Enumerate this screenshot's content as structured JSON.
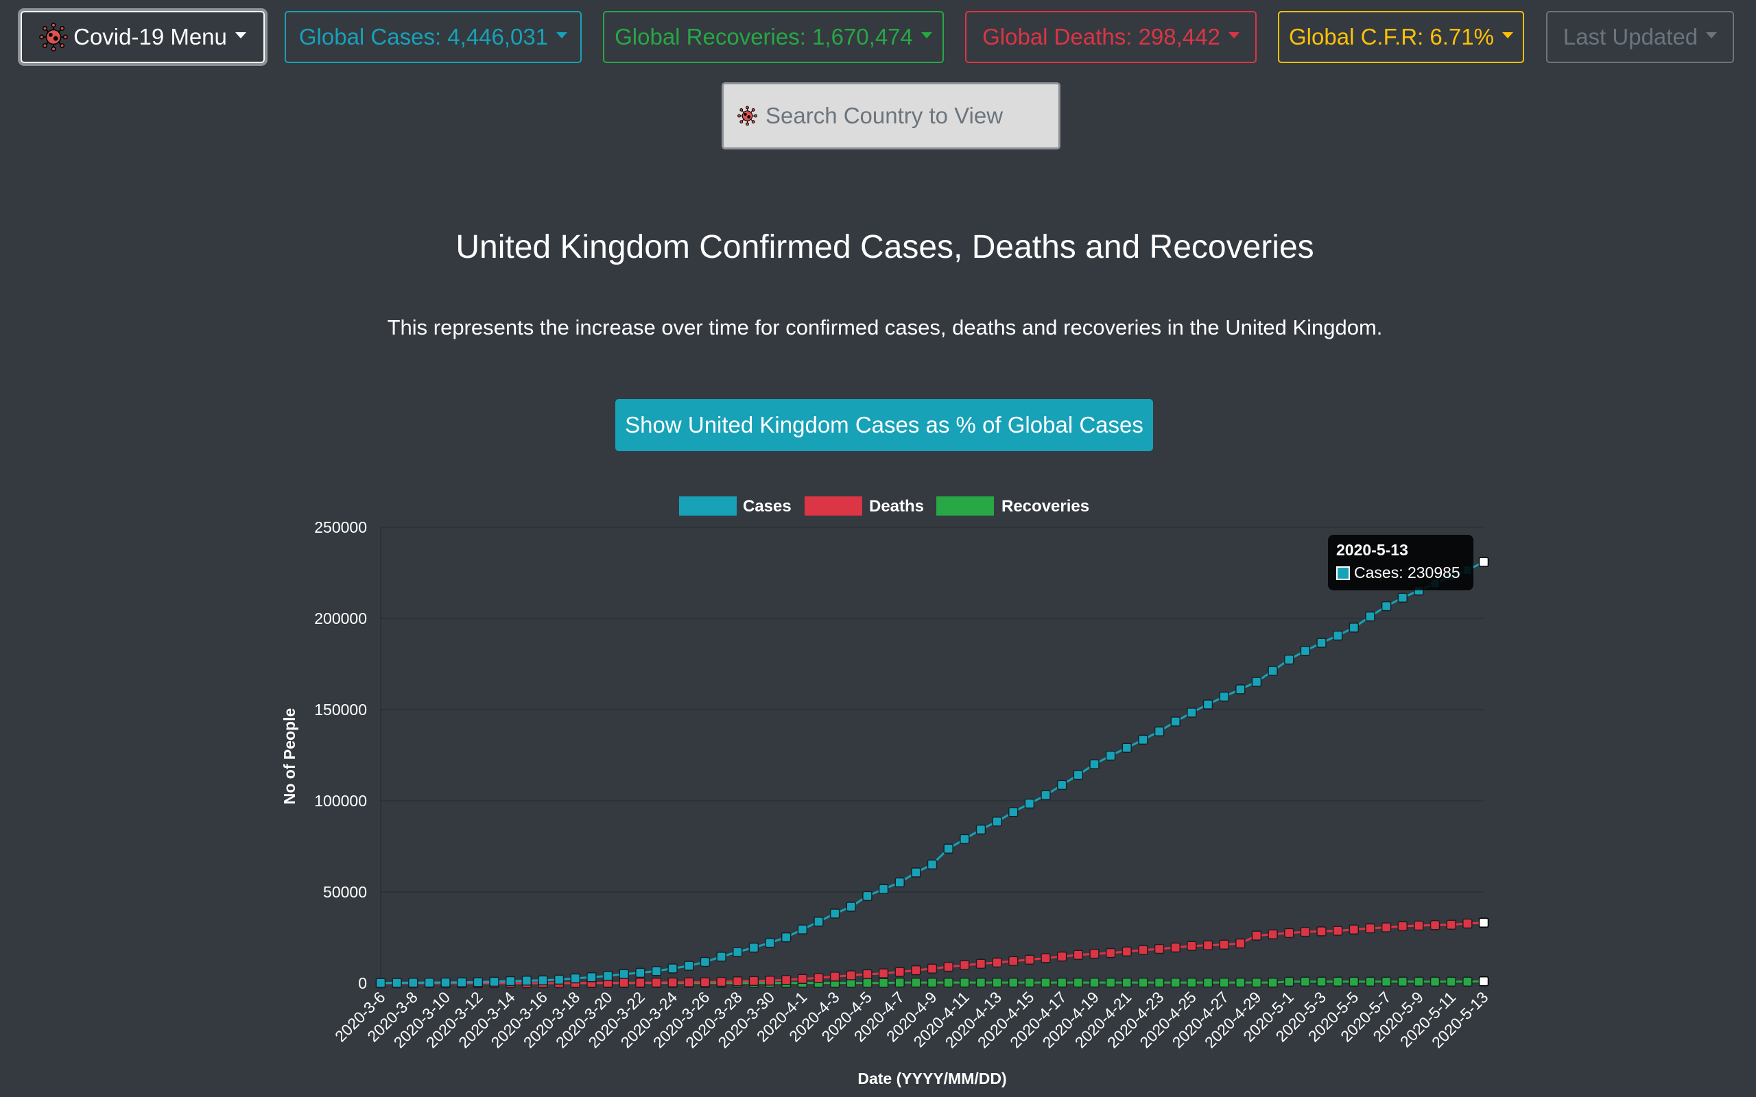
{
  "nav": {
    "menu_label": "Covid-19 Menu",
    "cases_label": "Global Cases: 4,446,031",
    "recoveries_label": "Global Recoveries: 1,670,474",
    "deaths_label": "Global Deaths: 298,442",
    "cfr_label": "Global C.F.R: 6.71%",
    "updated_label": "Last Updated"
  },
  "search": {
    "placeholder": "Search Country to View"
  },
  "main": {
    "title": "United Kingdom Confirmed Cases, Deaths and Recoveries",
    "subtitle": "This represents the increase over time for confirmed cases, deaths and recoveries in the United Kingdom.",
    "toggle_button": "Show United Kingdom Cases as % of Global Cases"
  },
  "tooltip": {
    "title": "2020-5-13",
    "text": "Cases: 230985"
  },
  "colors": {
    "cases": "#17a2b8",
    "deaths": "#dc3545",
    "recoveries": "#28a745",
    "background": "#343a40"
  },
  "icons": {
    "menu": "virus-icon",
    "search": "virus-icon"
  },
  "chart_data": {
    "type": "line",
    "xlabel": "Date (YYYY/MM/DD)",
    "ylabel": "No of People",
    "ylim": [
      0,
      250000
    ],
    "yticks": [
      0,
      50000,
      100000,
      150000,
      200000,
      250000
    ],
    "legend_position": "top",
    "x": [
      "2020-3-6",
      "2020-3-7",
      "2020-3-8",
      "2020-3-9",
      "2020-3-10",
      "2020-3-11",
      "2020-3-12",
      "2020-3-13",
      "2020-3-14",
      "2020-3-15",
      "2020-3-16",
      "2020-3-17",
      "2020-3-18",
      "2020-3-19",
      "2020-3-20",
      "2020-3-21",
      "2020-3-22",
      "2020-3-23",
      "2020-3-24",
      "2020-3-25",
      "2020-3-26",
      "2020-3-27",
      "2020-3-28",
      "2020-3-29",
      "2020-3-30",
      "2020-3-31",
      "2020-4-1",
      "2020-4-2",
      "2020-4-3",
      "2020-4-4",
      "2020-4-5",
      "2020-4-6",
      "2020-4-7",
      "2020-4-8",
      "2020-4-9",
      "2020-4-10",
      "2020-4-11",
      "2020-4-12",
      "2020-4-13",
      "2020-4-14",
      "2020-4-15",
      "2020-4-16",
      "2020-4-17",
      "2020-4-18",
      "2020-4-19",
      "2020-4-20",
      "2020-4-21",
      "2020-4-22",
      "2020-4-23",
      "2020-4-24",
      "2020-4-25",
      "2020-4-26",
      "2020-4-27",
      "2020-4-28",
      "2020-4-29",
      "2020-4-30",
      "2020-5-1",
      "2020-5-2",
      "2020-5-3",
      "2020-5-4",
      "2020-5-5",
      "2020-5-6",
      "2020-5-7",
      "2020-5-8",
      "2020-5-9",
      "2020-5-10",
      "2020-5-11",
      "2020-5-12",
      "2020-5-13"
    ],
    "series": [
      {
        "name": "Cases",
        "color": "#17a2b8",
        "values": [
          163,
          206,
          273,
          321,
          383,
          460,
          594,
          798,
          1140,
          1391,
          1543,
          1950,
          2626,
          3269,
          3983,
          5018,
          5683,
          6650,
          8077,
          9529,
          11658,
          14543,
          17089,
          19522,
          22141,
          25150,
          29474,
          33718,
          38168,
          41903,
          47806,
          51608,
          55242,
          60733,
          65077,
          73758,
          78991,
          84279,
          88621,
          93873,
          98476,
          103093,
          108692,
          114217,
          120067,
          124743,
          129044,
          133495,
          138078,
          143464,
          148377,
          152840,
          157149,
          161145,
          165221,
          171253,
          177454,
          182260,
          186599,
          190584,
          194990,
          201101,
          206715,
          211364,
          215260,
          219183,
          223060,
          226463,
          230985
        ]
      },
      {
        "name": "Deaths",
        "color": "#dc3545",
        "values": [
          2,
          2,
          3,
          4,
          6,
          8,
          8,
          8,
          21,
          21,
          56,
          56,
          72,
          138,
          178,
          234,
          282,
          336,
          423,
          466,
          580,
          761,
          1021,
          1231,
          1411,
          1793,
          2357,
          2926,
          3611,
          4320,
          4943,
          5385,
          6171,
          7111,
          7993,
          8974,
          9892,
          10629,
          11347,
          12129,
          12894,
          13759,
          14607,
          15498,
          16095,
          16550,
          17378,
          18151,
          18791,
          19567,
          20381,
          20794,
          21157,
          21787,
          26097,
          26771,
          27510,
          28131,
          28446,
          28734,
          29427,
          30076,
          30615,
          31241,
          31587,
          31855,
          32065,
          32692,
          33186
        ]
      },
      {
        "name": "Recoveries",
        "color": "#28a745",
        "values": [
          18,
          18,
          18,
          18,
          18,
          18,
          18,
          18,
          18,
          18,
          52,
          52,
          52,
          65,
          65,
          65,
          135,
          135,
          135,
          135,
          135,
          135,
          135,
          135,
          135,
          135,
          135,
          135,
          135,
          135,
          135,
          135,
          344,
          344,
          344,
          344,
          344,
          344,
          344,
          344,
          344,
          344,
          344,
          344,
          344,
          344,
          344,
          344,
          344,
          344,
          344,
          344,
          344,
          344,
          344,
          344,
          821,
          859,
          859,
          859,
          859,
          859,
          859,
          859,
          859,
          859,
          859,
          859,
          1023
        ]
      }
    ]
  }
}
